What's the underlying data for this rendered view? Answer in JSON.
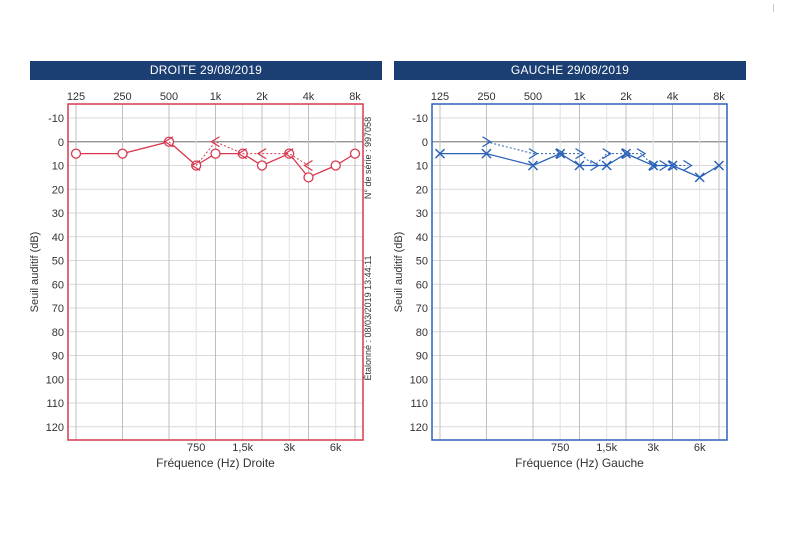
{
  "charts": {
    "right": {
      "title": "DROITE 29/08/2019",
      "xlabel": "Fréquence (Hz) Droite",
      "ylabel": "Seuil auditif (dB)",
      "side_text_1": "N° de série : 997058",
      "side_text_2": "Étalonné : 08/03/2019 13:44:11",
      "color": "#d8384e"
    },
    "left": {
      "title": "GAUCHE 29/08/2019",
      "xlabel": "Fréquence (Hz) Gauche",
      "ylabel": "Seuil auditif (dB)",
      "color": "#2a62b8"
    }
  },
  "chart_data": [
    {
      "type": "line",
      "title": "DROITE 29/08/2019",
      "xlabel": "Fréquence (Hz) Droite",
      "ylabel": "Seuil auditif (dB)",
      "x_scale": "log",
      "top_ticks": [
        "125",
        "250",
        "500",
        "1k",
        "2k",
        "4k",
        "8k"
      ],
      "top_tick_values": [
        125,
        250,
        500,
        1000,
        2000,
        4000,
        8000
      ],
      "bottom_ticks": [
        "750",
        "1,5k",
        "3k",
        "6k"
      ],
      "bottom_tick_values": [
        750,
        1500,
        3000,
        6000
      ],
      "yticks": [
        -10,
        0,
        10,
        20,
        30,
        40,
        50,
        60,
        70,
        80,
        90,
        100,
        110,
        120
      ],
      "ylim": [
        -10,
        125
      ],
      "y_inverted": true,
      "grid": true,
      "series": [
        {
          "marker": "circle",
          "line": "solid",
          "x": [
            125,
            250,
            500,
            750,
            1000,
            1500,
            2000,
            3000,
            4000,
            6000,
            8000
          ],
          "y": [
            5,
            5,
            0,
            10,
            5,
            5,
            10,
            5,
            15,
            10,
            5
          ]
        },
        {
          "marker": "less-than",
          "line": "dotted",
          "x": [
            500,
            750,
            1000,
            1500,
            2000,
            3000,
            4000
          ],
          "y": [
            0,
            10,
            0,
            5,
            5,
            5,
            10
          ]
        }
      ]
    },
    {
      "type": "line",
      "title": "GAUCHE 29/08/2019",
      "xlabel": "Fréquence (Hz) Gauche",
      "ylabel": "Seuil auditif (dB)",
      "x_scale": "log",
      "top_ticks": [
        "125",
        "250",
        "500",
        "1k",
        "2k",
        "4k",
        "8k"
      ],
      "top_tick_values": [
        125,
        250,
        500,
        1000,
        2000,
        4000,
        8000
      ],
      "bottom_ticks": [
        "750",
        "1,5k",
        "3k",
        "6k"
      ],
      "bottom_tick_values": [
        750,
        1500,
        3000,
        6000
      ],
      "yticks": [
        -10,
        0,
        10,
        20,
        30,
        40,
        50,
        60,
        70,
        80,
        90,
        100,
        110,
        120
      ],
      "ylim": [
        -10,
        125
      ],
      "y_inverted": true,
      "grid": true,
      "series": [
        {
          "marker": "cross",
          "line": "solid",
          "x": [
            125,
            250,
            500,
            750,
            1000,
            1500,
            2000,
            3000,
            4000,
            6000,
            8000
          ],
          "y": [
            5,
            5,
            10,
            5,
            10,
            10,
            5,
            10,
            10,
            15,
            10
          ]
        },
        {
          "marker": "greater-than",
          "line": "dotted",
          "x": [
            250,
            500,
            750,
            1000,
            1250,
            1500,
            2000,
            2500,
            3000,
            3500,
            4000,
            5000
          ],
          "y": [
            0,
            5,
            5,
            5,
            10,
            5,
            5,
            5,
            10,
            10,
            10,
            10
          ]
        }
      ]
    }
  ]
}
